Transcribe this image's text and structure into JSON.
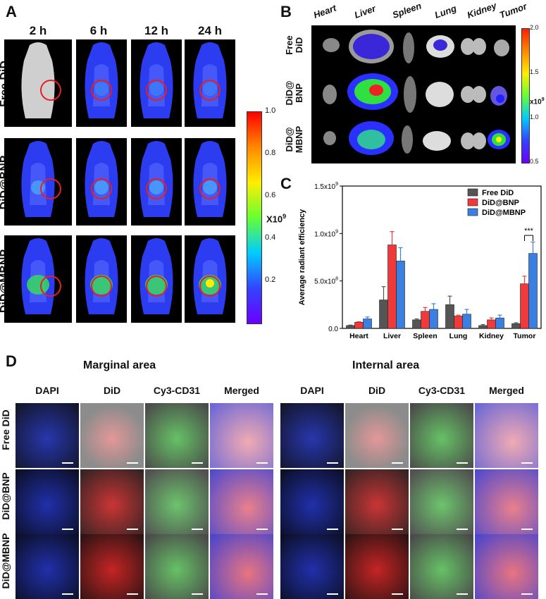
{
  "panelA": {
    "label": "A",
    "times": [
      "2 h",
      "6 h",
      "12 h",
      "24 h"
    ],
    "rows": [
      "Free DiD",
      "DiD@BNP",
      "DiD@MBNP"
    ],
    "colorbar": {
      "ticks": [
        "1.0",
        "0.8",
        "0.6",
        "0.4",
        "0.2"
      ],
      "unit": "X10",
      "unit_exp": "9"
    }
  },
  "panelB": {
    "label": "B",
    "organs": [
      "Heart",
      "Liver",
      "Spleen",
      "Lung",
      "Kidney",
      "Tumor"
    ],
    "rows": [
      [
        "Free",
        "DiD"
      ],
      [
        "DiD@",
        "BNP"
      ],
      [
        "DiD@",
        "MBNP"
      ]
    ],
    "colorbar": {
      "ticks": [
        "2.0",
        "1.5",
        "1.0",
        "0.5"
      ],
      "unit": "x10",
      "unit_exp": "9"
    }
  },
  "panelC": {
    "label": "C",
    "significance": "***"
  },
  "chart_data": {
    "type": "bar",
    "categories": [
      "Heart",
      "Liver",
      "Spleen",
      "Lung",
      "Kidney",
      "Tumor"
    ],
    "series": [
      {
        "name": "Free DiD",
        "color": "#555555",
        "values": [
          0.03,
          0.3,
          0.09,
          0.25,
          0.03,
          0.05
        ],
        "errors": [
          0.005,
          0.14,
          0.01,
          0.09,
          0.01,
          0.01
        ]
      },
      {
        "name": "DiD@BNP",
        "color": "#ee3a3a",
        "values": [
          0.065,
          0.88,
          0.18,
          0.13,
          0.09,
          0.47
        ],
        "errors": [
          0.005,
          0.14,
          0.04,
          0.01,
          0.02,
          0.08
        ]
      },
      {
        "name": "DiD@MBNP",
        "color": "#3b7fe0",
        "values": [
          0.1,
          0.71,
          0.2,
          0.15,
          0.11,
          0.79
        ],
        "errors": [
          0.02,
          0.14,
          0.06,
          0.05,
          0.03,
          0.12
        ]
      }
    ],
    "ylabel": "Average radiant efficiency",
    "yticks": [
      "0.0",
      "5.0x10",
      "1.0x10",
      "1.5x10"
    ],
    "ytick_exps": [
      "",
      "8",
      "9",
      "9"
    ],
    "ylim": [
      0,
      1.5
    ],
    "legend": "top-right"
  },
  "panelD": {
    "label": "D",
    "sections": [
      "Marginal area",
      "Internal area"
    ],
    "columns": [
      "DAPI",
      "DiD",
      "Cy3-CD31",
      "Merged"
    ],
    "rows": [
      "Free DiD",
      "DiD@BNP",
      "DiD@MBNP"
    ]
  }
}
